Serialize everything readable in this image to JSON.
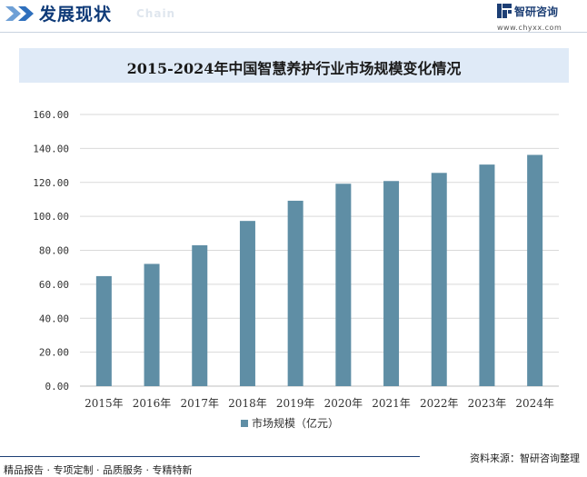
{
  "header": {
    "title": "发展现状",
    "subtitle": "Chain",
    "brand_name": "智研咨询",
    "brand_url": "www.chyxx.com"
  },
  "colors": {
    "bar": "#5f8ea5",
    "title_blue": "#0e3a78",
    "title_bar_bg": "#dfeaf7"
  },
  "chart_data": {
    "type": "bar",
    "title": "2015-2024年中国智慧养护行业市场规模变化情况",
    "categories": [
      "2015年",
      "2016年",
      "2017年",
      "2018年",
      "2019年",
      "2020年",
      "2021年",
      "2022年",
      "2023年",
      "2024年"
    ],
    "series": [
      {
        "name": "市场规模（亿元）",
        "values": [
          64.8,
          72.0,
          83.0,
          97.3,
          109.2,
          119.2,
          120.8,
          125.6,
          130.5,
          136.2
        ]
      }
    ],
    "yticks": [
      "0.00",
      "20.00",
      "40.00",
      "60.00",
      "80.00",
      "100.00",
      "120.00",
      "140.00",
      "160.00"
    ],
    "ylim": [
      0,
      160
    ],
    "xlabel": "",
    "ylabel": "",
    "grid": true,
    "legend": "bottom-center"
  },
  "footer": {
    "left": "精品报告 · 专项定制 · 品质服务 · 专精特新",
    "right": "资料来源：智研咨询整理"
  }
}
